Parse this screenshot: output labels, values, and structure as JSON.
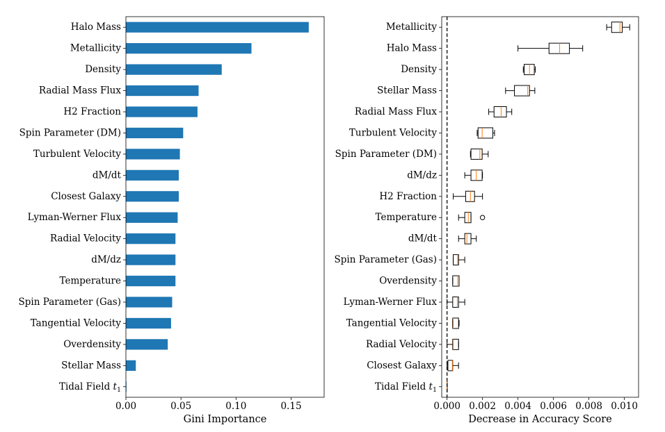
{
  "chart_data": [
    {
      "type": "bar",
      "orientation": "horizontal",
      "xlabel": "Gini Importance",
      "xlim": [
        0,
        0.18
      ],
      "xticks": [
        {
          "value": 0.0,
          "label": "0.00"
        },
        {
          "value": 0.05,
          "label": "0.05"
        },
        {
          "value": 0.1,
          "label": "0.10"
        },
        {
          "value": 0.15,
          "label": "0.15"
        }
      ],
      "bar_color": "#1f77b4",
      "categories": [
        {
          "name": "Halo Mass",
          "value": 0.166
        },
        {
          "name": "Metallicity",
          "value": 0.114
        },
        {
          "name": "Density",
          "value": 0.087
        },
        {
          "name": "Radial Mass Flux",
          "value": 0.066
        },
        {
          "name": "H2 Fraction",
          "sub": "2",
          "value": 0.065
        },
        {
          "name": "Spin Parameter (DM)",
          "value": 0.052
        },
        {
          "name": "Turbulent Velocity",
          "value": 0.049
        },
        {
          "name": "dM/dt",
          "value": 0.048
        },
        {
          "name": "Closest Galaxy",
          "value": 0.048
        },
        {
          "name": "Lyman-Werner Flux",
          "value": 0.047
        },
        {
          "name": "Radial Velocity",
          "value": 0.045
        },
        {
          "name": "dM/dz",
          "value": 0.045
        },
        {
          "name": "Temperature",
          "value": 0.045
        },
        {
          "name": "Spin Parameter (Gas)",
          "value": 0.042
        },
        {
          "name": "Tangential Velocity",
          "value": 0.041
        },
        {
          "name": "Overdensity",
          "value": 0.038
        },
        {
          "name": "Stellar Mass",
          "value": 0.009
        },
        {
          "name": "Tidal Field t1",
          "sub": "1",
          "value": 0.0005
        }
      ]
    },
    {
      "type": "boxplot",
      "orientation": "horizontal",
      "xlabel": "Decrease in Accuracy Score",
      "xlim": [
        -0.0003,
        0.0108
      ],
      "xticks": [
        {
          "value": 0.0,
          "label": "0.000"
        },
        {
          "value": 0.002,
          "label": "0.002"
        },
        {
          "value": 0.004,
          "label": "0.004"
        },
        {
          "value": 0.006,
          "label": "0.006"
        },
        {
          "value": 0.008,
          "label": "0.008"
        },
        {
          "value": 0.01,
          "label": "0.010"
        }
      ],
      "reference_line": {
        "x": 0.0,
        "style": "dashed"
      },
      "median_color": "#ff7f0e",
      "categories": [
        {
          "name": "Metallicity",
          "whislo": 0.009,
          "q1": 0.00928,
          "med": 0.00975,
          "q3": 0.00988,
          "whishi": 0.0103,
          "fliers": []
        },
        {
          "name": "Halo Mass",
          "whislo": 0.004,
          "q1": 0.00575,
          "med": 0.00635,
          "q3": 0.0069,
          "whishi": 0.00765,
          "fliers": []
        },
        {
          "name": "Density",
          "whislo": 0.0043,
          "q1": 0.00435,
          "med": 0.00465,
          "q3": 0.00492,
          "whishi": 0.00498,
          "fliers": []
        },
        {
          "name": "Stellar Mass",
          "whislo": 0.0033,
          "q1": 0.0038,
          "med": 0.00455,
          "q3": 0.00465,
          "whishi": 0.00495,
          "fliers": []
        },
        {
          "name": "Radial Mass Flux",
          "whislo": 0.00235,
          "q1": 0.00265,
          "med": 0.00305,
          "q3": 0.00335,
          "whishi": 0.00365,
          "fliers": []
        },
        {
          "name": "Turbulent Velocity",
          "whislo": 0.0017,
          "q1": 0.00175,
          "med": 0.00198,
          "q3": 0.00258,
          "whishi": 0.00268,
          "fliers": []
        },
        {
          "name": "Spin Parameter (DM)",
          "whislo": 0.00132,
          "q1": 0.00135,
          "med": 0.00185,
          "q3": 0.00198,
          "whishi": 0.00232,
          "fliers": []
        },
        {
          "name": "dM/dz",
          "whislo": 0.001,
          "q1": 0.00135,
          "med": 0.00165,
          "q3": 0.00198,
          "whishi": 0.002,
          "fliers": []
        },
        {
          "name": "H2 Fraction",
          "sub": "2",
          "whislo": 0.00035,
          "q1": 0.00105,
          "med": 0.00132,
          "q3": 0.00155,
          "whishi": 0.002,
          "fliers": []
        },
        {
          "name": "Temperature",
          "whislo": 0.00065,
          "q1": 0.001,
          "med": 0.0012,
          "q3": 0.00135,
          "whishi": 0.00135,
          "fliers": [
            0.002
          ]
        },
        {
          "name": "dM/dt",
          "whislo": 0.00065,
          "q1": 0.001,
          "med": 0.00112,
          "q3": 0.00135,
          "whishi": 0.00165,
          "fliers": []
        },
        {
          "name": "Spin Parameter (Gas)",
          "whislo": 0.00035,
          "q1": 0.00035,
          "med": 0.0006,
          "q3": 0.00065,
          "whishi": 0.001,
          "fliers": []
        },
        {
          "name": "Overdensity",
          "whislo": 0.00032,
          "q1": 0.00032,
          "med": 0.0006,
          "q3": 0.00068,
          "whishi": 0.00068,
          "fliers": []
        },
        {
          "name": "Lyman-Werner Flux",
          "whislo": 0.0,
          "q1": 0.00032,
          "med": 0.00058,
          "q3": 0.00065,
          "whishi": 0.001,
          "fliers": []
        },
        {
          "name": "Tangential Velocity",
          "whislo": 0.00032,
          "q1": 0.00032,
          "med": 0.00035,
          "q3": 0.00065,
          "whishi": 0.00068,
          "fliers": []
        },
        {
          "name": "Radial Velocity",
          "whislo": 0.0,
          "q1": 0.00032,
          "med": 0.00035,
          "q3": 0.00065,
          "whishi": 0.00065,
          "fliers": []
        },
        {
          "name": "Closest Galaxy",
          "whislo": 0.0,
          "q1": 5e-05,
          "med": 0.0003,
          "q3": 0.00032,
          "whishi": 0.00065,
          "fliers": []
        },
        {
          "name": "Tidal Field t1",
          "sub": "1",
          "whislo": 0.0,
          "q1": 0.0,
          "med": 0.0,
          "q3": 0.0,
          "whishi": 0.0,
          "fliers": []
        }
      ]
    }
  ]
}
